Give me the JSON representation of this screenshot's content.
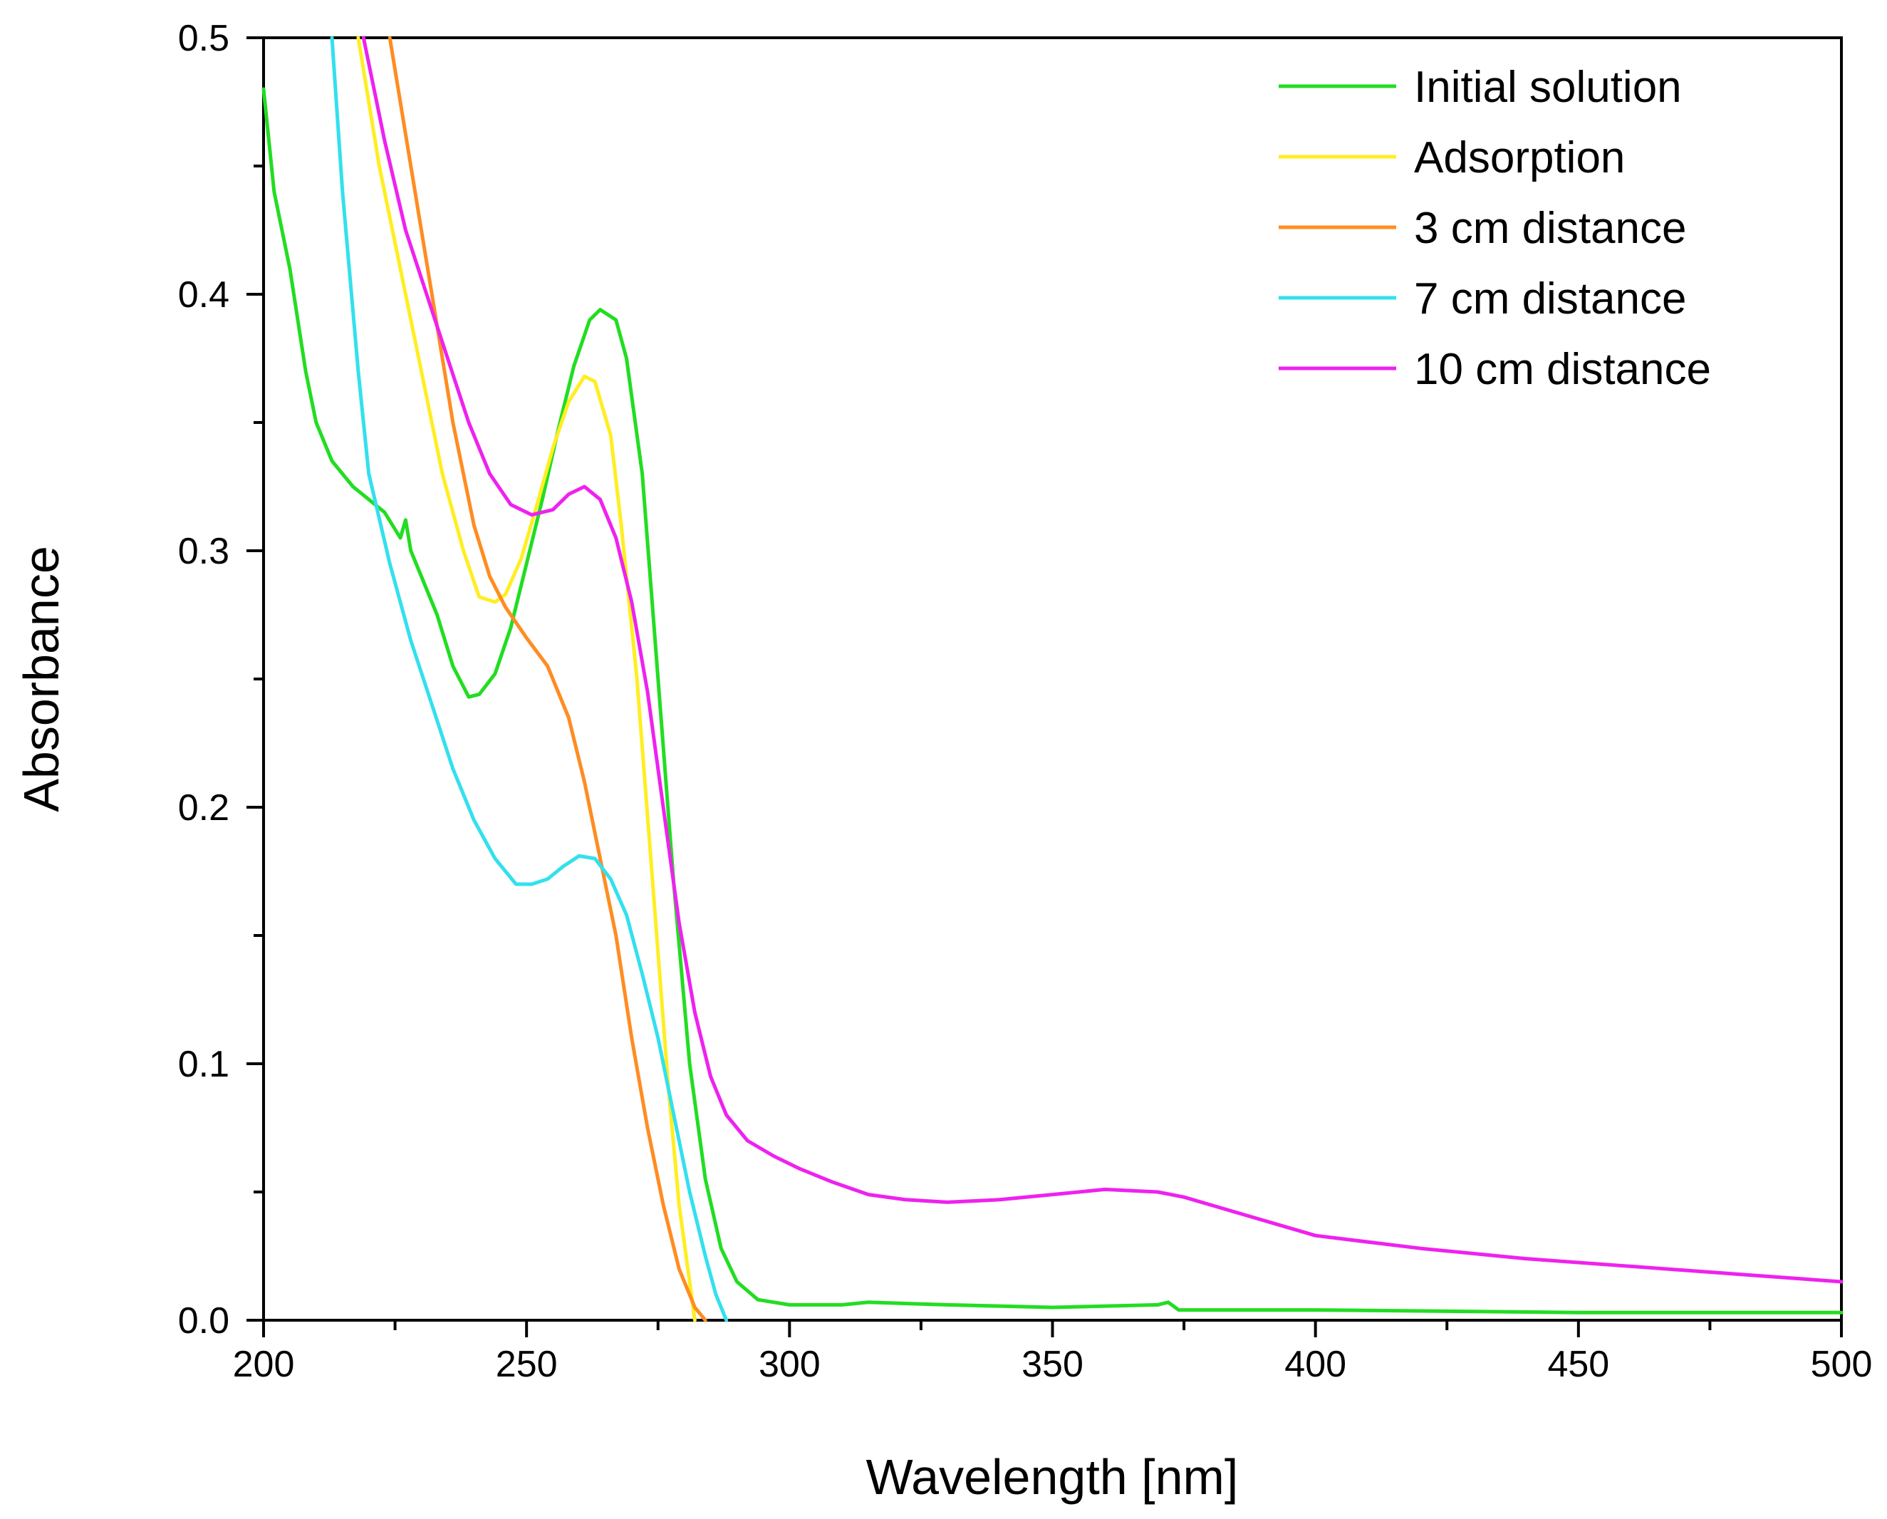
{
  "chart_data": {
    "type": "line",
    "title": "",
    "xlabel": "Wavelength [nm]",
    "ylabel": "Absorbance",
    "xlim": [
      200,
      500
    ],
    "ylim": [
      0.0,
      0.5
    ],
    "grid": false,
    "legend_position": "top-right",
    "x_ticks": [
      "200",
      "250",
      "300",
      "350",
      "400",
      "450",
      "500"
    ],
    "y_ticks": [
      "0.0",
      "0.1",
      "0.2",
      "0.3",
      "0.4",
      "0.5"
    ],
    "series": [
      {
        "name": "Initial solution",
        "color": "#22dd22",
        "points": [
          [
            200,
            0.48
          ],
          [
            202,
            0.44
          ],
          [
            205,
            0.41
          ],
          [
            208,
            0.37
          ],
          [
            210,
            0.35
          ],
          [
            213,
            0.335
          ],
          [
            217,
            0.325
          ],
          [
            220,
            0.32
          ],
          [
            223,
            0.315
          ],
          [
            226,
            0.305
          ],
          [
            227,
            0.312
          ],
          [
            228,
            0.3
          ],
          [
            230,
            0.29
          ],
          [
            233,
            0.275
          ],
          [
            236,
            0.255
          ],
          [
            239,
            0.243
          ],
          [
            241,
            0.244
          ],
          [
            244,
            0.252
          ],
          [
            247,
            0.27
          ],
          [
            250,
            0.295
          ],
          [
            253,
            0.32
          ],
          [
            256,
            0.347
          ],
          [
            259,
            0.372
          ],
          [
            262,
            0.39
          ],
          [
            264,
            0.394
          ],
          [
            267,
            0.39
          ],
          [
            269,
            0.375
          ],
          [
            272,
            0.33
          ],
          [
            275,
            0.25
          ],
          [
            278,
            0.17
          ],
          [
            281,
            0.1
          ],
          [
            284,
            0.055
          ],
          [
            287,
            0.028
          ],
          [
            290,
            0.015
          ],
          [
            294,
            0.008
          ],
          [
            300,
            0.006
          ],
          [
            310,
            0.006
          ],
          [
            315,
            0.007
          ],
          [
            330,
            0.006
          ],
          [
            350,
            0.005
          ],
          [
            370,
            0.006
          ],
          [
            372,
            0.007
          ],
          [
            374,
            0.004
          ],
          [
            400,
            0.004
          ],
          [
            450,
            0.003
          ],
          [
            500,
            0.003
          ]
        ]
      },
      {
        "name": "Adsorption",
        "color": "#ffee22",
        "points": [
          [
            218,
            0.5
          ],
          [
            222,
            0.45
          ],
          [
            226,
            0.41
          ],
          [
            230,
            0.37
          ],
          [
            234,
            0.33
          ],
          [
            238,
            0.3
          ],
          [
            241,
            0.282
          ],
          [
            244,
            0.28
          ],
          [
            246,
            0.283
          ],
          [
            249,
            0.297
          ],
          [
            252,
            0.318
          ],
          [
            255,
            0.34
          ],
          [
            258,
            0.358
          ],
          [
            261,
            0.368
          ],
          [
            263,
            0.366
          ],
          [
            266,
            0.345
          ],
          [
            268,
            0.31
          ],
          [
            271,
            0.25
          ],
          [
            274,
            0.17
          ],
          [
            277,
            0.09
          ],
          [
            279,
            0.045
          ],
          [
            281,
            0.015
          ],
          [
            282,
            0.0
          ]
        ]
      },
      {
        "name": "3 cm distance",
        "color": "#ff8c22",
        "points": [
          [
            224,
            0.5
          ],
          [
            228,
            0.45
          ],
          [
            232,
            0.4
          ],
          [
            236,
            0.35
          ],
          [
            240,
            0.31
          ],
          [
            243,
            0.29
          ],
          [
            246,
            0.278
          ],
          [
            250,
            0.266
          ],
          [
            254,
            0.255
          ],
          [
            258,
            0.235
          ],
          [
            261,
            0.21
          ],
          [
            264,
            0.18
          ],
          [
            267,
            0.15
          ],
          [
            270,
            0.11
          ],
          [
            273,
            0.075
          ],
          [
            276,
            0.045
          ],
          [
            279,
            0.02
          ],
          [
            282,
            0.005
          ],
          [
            284,
            0.0
          ]
        ]
      },
      {
        "name": "7 cm distance",
        "color": "#33e0ee",
        "points": [
          [
            213,
            0.5
          ],
          [
            215,
            0.44
          ],
          [
            218,
            0.37
          ],
          [
            220,
            0.33
          ],
          [
            224,
            0.295
          ],
          [
            228,
            0.265
          ],
          [
            232,
            0.24
          ],
          [
            236,
            0.215
          ],
          [
            240,
            0.195
          ],
          [
            244,
            0.18
          ],
          [
            248,
            0.17
          ],
          [
            251,
            0.17
          ],
          [
            254,
            0.172
          ],
          [
            257,
            0.177
          ],
          [
            260,
            0.181
          ],
          [
            263,
            0.18
          ],
          [
            266,
            0.172
          ],
          [
            269,
            0.158
          ],
          [
            272,
            0.135
          ],
          [
            275,
            0.11
          ],
          [
            278,
            0.08
          ],
          [
            281,
            0.05
          ],
          [
            284,
            0.025
          ],
          [
            286,
            0.01
          ],
          [
            288,
            0.0
          ]
        ]
      },
      {
        "name": "10 cm distance",
        "color": "#ee22ee",
        "points": [
          [
            219,
            0.5
          ],
          [
            223,
            0.46
          ],
          [
            227,
            0.425
          ],
          [
            231,
            0.4
          ],
          [
            235,
            0.375
          ],
          [
            239,
            0.35
          ],
          [
            243,
            0.33
          ],
          [
            247,
            0.318
          ],
          [
            251,
            0.314
          ],
          [
            255,
            0.316
          ],
          [
            258,
            0.322
          ],
          [
            261,
            0.325
          ],
          [
            264,
            0.32
          ],
          [
            267,
            0.305
          ],
          [
            270,
            0.28
          ],
          [
            273,
            0.245
          ],
          [
            276,
            0.2
          ],
          [
            279,
            0.155
          ],
          [
            282,
            0.12
          ],
          [
            285,
            0.095
          ],
          [
            288,
            0.08
          ],
          [
            292,
            0.07
          ],
          [
            297,
            0.064
          ],
          [
            302,
            0.059
          ],
          [
            308,
            0.054
          ],
          [
            315,
            0.049
          ],
          [
            322,
            0.047
          ],
          [
            330,
            0.046
          ],
          [
            340,
            0.047
          ],
          [
            350,
            0.049
          ],
          [
            360,
            0.051
          ],
          [
            370,
            0.05
          ],
          [
            375,
            0.048
          ],
          [
            380,
            0.045
          ],
          [
            390,
            0.039
          ],
          [
            400,
            0.033
          ],
          [
            420,
            0.028
          ],
          [
            440,
            0.024
          ],
          [
            460,
            0.021
          ],
          [
            480,
            0.018
          ],
          [
            500,
            0.015
          ]
        ]
      }
    ]
  }
}
